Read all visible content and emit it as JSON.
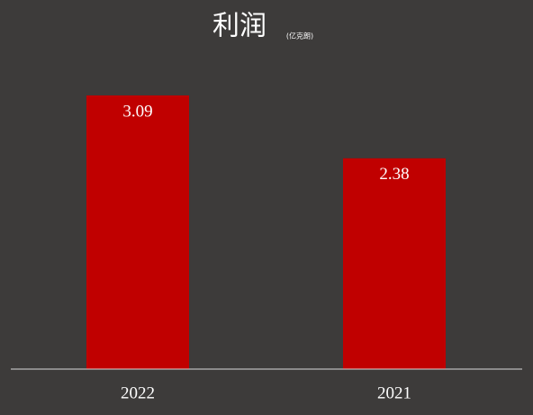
{
  "chart_data": {
    "type": "bar",
    "title": "利润",
    "subtitle": "(亿克朗)",
    "categories": [
      "2022",
      "2021"
    ],
    "values": [
      3.09,
      2.38
    ],
    "color": "#c00000"
  }
}
